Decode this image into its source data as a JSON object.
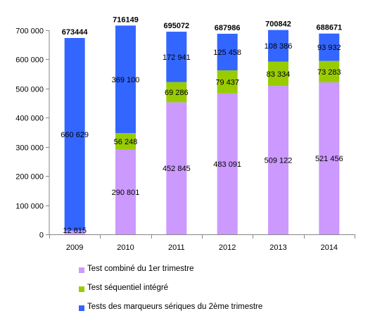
{
  "chart_data": {
    "type": "bar",
    "stacked": true,
    "categories": [
      "2009",
      "2010",
      "2011",
      "2012",
      "2013",
      "2014"
    ],
    "totals": [
      "673444",
      "716149",
      "695072",
      "687986",
      "700842",
      "688671"
    ],
    "series": [
      {
        "name": "Test combiné du 1er trimestre",
        "color": "#cc99ff",
        "values": [
          12815,
          290801,
          452845,
          483091,
          509122,
          521456
        ],
        "labels": [
          "12 815",
          "290 801",
          "452 845",
          "483 091",
          "509 122",
          "521 456"
        ]
      },
      {
        "name": "Test séquentiel intégré",
        "color": "#99cc00",
        "values": [
          0,
          56248,
          69286,
          79437,
          83334,
          73283
        ],
        "labels": [
          "",
          "56 248",
          "69 286",
          "79 437",
          "83 334",
          "73 283"
        ]
      },
      {
        "name": "Tests des marqueurs sériques du 2ème trimestre",
        "color": "#3366ff",
        "values": [
          660629,
          369100,
          172941,
          125458,
          108386,
          93932
        ],
        "labels": [
          "660 629",
          "369 100",
          "172 941",
          "125 458",
          "108 386",
          "93 932"
        ]
      }
    ],
    "ylim": [
      0,
      700000
    ],
    "yticks": [
      0,
      100000,
      200000,
      300000,
      400000,
      500000,
      600000,
      700000
    ],
    "ytick_labels": [
      "0",
      "100 000",
      "200 000",
      "300 000",
      "400 000",
      "500 000",
      "600 000",
      "700 000"
    ],
    "xlabel": "",
    "ylabel": "",
    "grid": false,
    "legend_position": "bottom"
  }
}
